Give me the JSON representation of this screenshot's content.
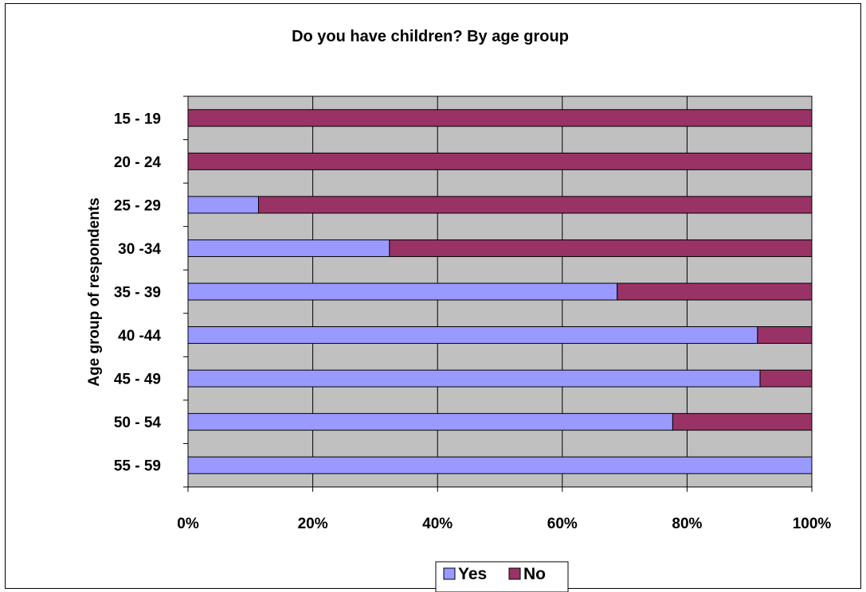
{
  "chart_data": {
    "type": "bar",
    "orientation": "horizontal",
    "stacked": "percent",
    "title": "Do you have children? By age group",
    "ylabel": "Age group of respondents",
    "xlabel": "",
    "categories": [
      "15 - 19",
      "20 - 24",
      "25 - 29",
      "30 -34",
      "35 - 39",
      "40 -44",
      "45 - 49",
      "50 - 54",
      "55 - 59"
    ],
    "series": [
      {
        "name": "Yes",
        "values": [
          0,
          0,
          11.3,
          32.3,
          68.8,
          91.3,
          91.7,
          77.7,
          100
        ]
      },
      {
        "name": "No",
        "values": [
          100,
          100,
          88.7,
          67.7,
          31.2,
          8.7,
          8.3,
          22.3,
          0
        ]
      }
    ],
    "xticks": [
      "0%",
      "20%",
      "40%",
      "60%",
      "80%",
      "100%"
    ],
    "xlim": [
      0,
      100
    ],
    "grid": true,
    "legend_position": "bottom",
    "colors": {
      "Yes": "#9999ff",
      "No": "#993366",
      "plot_background": "#c0c0c0"
    }
  }
}
